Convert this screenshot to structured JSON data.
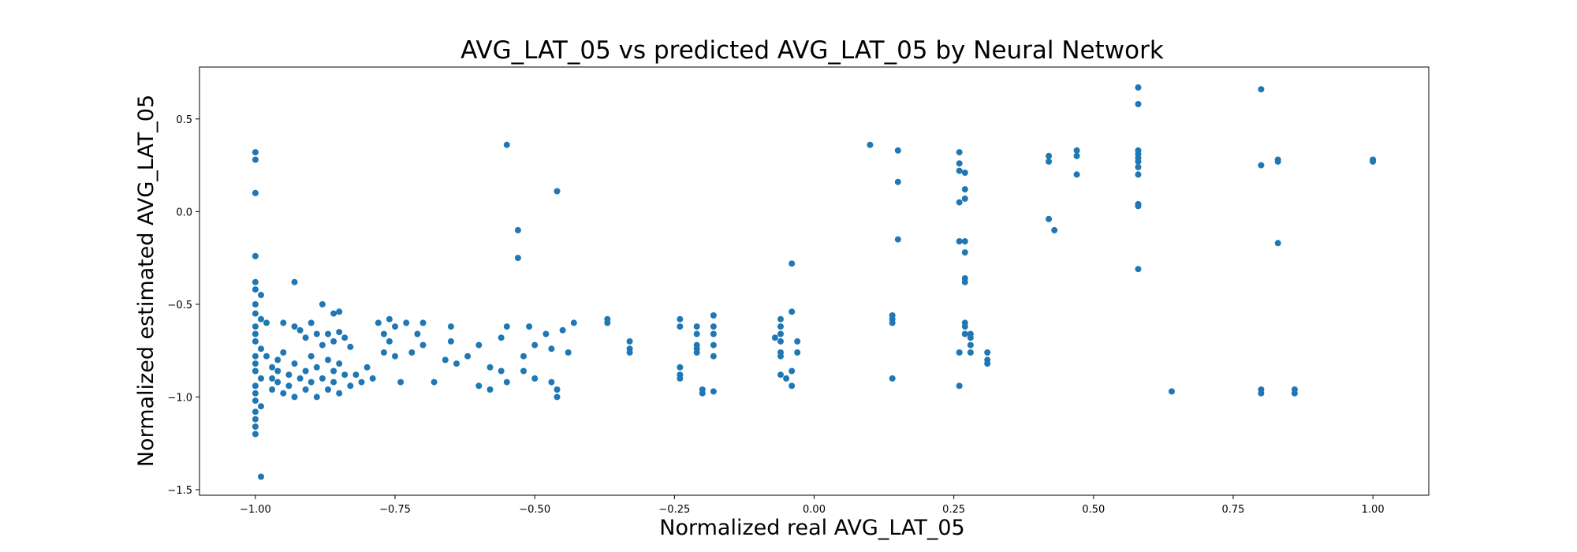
{
  "chart_data": {
    "type": "scatter",
    "title": "AVG_LAT_05 vs predicted AVG_LAT_05 by Neural Network",
    "xlabel": "Normalized real AVG_LAT_05",
    "ylabel": "Normalized estimated AVG_LAT_05",
    "xlim": [
      -1.1,
      1.1
    ],
    "ylim": [
      -1.53,
      0.78
    ],
    "xticks": [
      -1.0,
      -0.75,
      -0.5,
      -0.25,
      0.0,
      0.25,
      0.5,
      0.75,
      1.0
    ],
    "xtick_labels": [
      "−1.00",
      "−0.75",
      "−0.50",
      "−0.25",
      "0.00",
      "0.25",
      "0.50",
      "0.75",
      "1.00"
    ],
    "yticks": [
      -1.5,
      -1.0,
      -0.5,
      0.0,
      0.5
    ],
    "ytick_labels": [
      "−1.5",
      "−1.0",
      "−0.5",
      "0.0",
      "0.5"
    ],
    "grid": false,
    "legend": "none",
    "marker_color": "#1f77b4",
    "series": [
      {
        "points": [
          [
            -1.0,
            0.32
          ],
          [
            -1.0,
            0.28
          ],
          [
            -1.0,
            0.1
          ],
          [
            -1.0,
            -0.24
          ],
          [
            -1.0,
            -0.38
          ],
          [
            -1.0,
            -0.42
          ],
          [
            -0.99,
            -0.45
          ],
          [
            -1.0,
            -0.5
          ],
          [
            -1.0,
            -0.55
          ],
          [
            -0.99,
            -0.58
          ],
          [
            -1.0,
            -0.62
          ],
          [
            -1.0,
            -0.66
          ],
          [
            -1.0,
            -0.7
          ],
          [
            -0.99,
            -0.74
          ],
          [
            -1.0,
            -0.78
          ],
          [
            -1.0,
            -0.82
          ],
          [
            -1.0,
            -0.86
          ],
          [
            -0.99,
            -0.9
          ],
          [
            -1.0,
            -0.94
          ],
          [
            -1.0,
            -0.98
          ],
          [
            -1.0,
            -1.02
          ],
          [
            -0.99,
            -1.05
          ],
          [
            -1.0,
            -1.08
          ],
          [
            -1.0,
            -1.12
          ],
          [
            -1.0,
            -1.16
          ],
          [
            -1.0,
            -1.2
          ],
          [
            -0.99,
            -1.43
          ],
          [
            -0.98,
            -0.6
          ],
          [
            -0.98,
            -0.78
          ],
          [
            -0.97,
            -0.84
          ],
          [
            -0.97,
            -0.9
          ],
          [
            -0.97,
            -0.96
          ],
          [
            -0.96,
            -0.8
          ],
          [
            -0.96,
            -0.86
          ],
          [
            -0.96,
            -0.92
          ],
          [
            -0.95,
            -0.98
          ],
          [
            -0.95,
            -0.76
          ],
          [
            -0.94,
            -0.88
          ],
          [
            -0.94,
            -0.94
          ],
          [
            -0.93,
            -0.82
          ],
          [
            -0.93,
            -1.0
          ],
          [
            -0.92,
            -0.64
          ],
          [
            -0.92,
            -0.9
          ],
          [
            -0.91,
            -0.86
          ],
          [
            -0.91,
            -0.96
          ],
          [
            -0.9,
            -0.78
          ],
          [
            -0.9,
            -0.92
          ],
          [
            -0.89,
            -0.84
          ],
          [
            -0.89,
            -1.0
          ],
          [
            -0.88,
            -0.9
          ],
          [
            -0.87,
            -0.8
          ],
          [
            -0.87,
            -0.96
          ],
          [
            -0.86,
            -0.86
          ],
          [
            -0.86,
            -0.92
          ],
          [
            -0.85,
            -0.82
          ],
          [
            -0.85,
            -0.98
          ],
          [
            -0.84,
            -0.88
          ],
          [
            -0.83,
            -0.94
          ],
          [
            -0.95,
            -0.6
          ],
          [
            -0.93,
            -0.62
          ],
          [
            -0.91,
            -0.68
          ],
          [
            -0.9,
            -0.6
          ],
          [
            -0.89,
            -0.66
          ],
          [
            -0.88,
            -0.72
          ],
          [
            -0.87,
            -0.66
          ],
          [
            -0.86,
            -0.7
          ],
          [
            -0.85,
            -0.65
          ],
          [
            -0.84,
            -0.68
          ],
          [
            -0.83,
            -0.73
          ],
          [
            -0.82,
            -0.88
          ],
          [
            -0.81,
            -0.92
          ],
          [
            -0.8,
            -0.84
          ],
          [
            -0.79,
            -0.9
          ],
          [
            -0.88,
            -0.5
          ],
          [
            -0.93,
            -0.38
          ],
          [
            -0.86,
            -0.55
          ],
          [
            -0.85,
            -0.54
          ],
          [
            -0.78,
            -0.6
          ],
          [
            -0.77,
            -0.66
          ],
          [
            -0.77,
            -0.76
          ],
          [
            -0.76,
            -0.7
          ],
          [
            -0.76,
            -0.58
          ],
          [
            -0.75,
            -0.62
          ],
          [
            -0.75,
            -0.78
          ],
          [
            -0.74,
            -0.92
          ],
          [
            -0.73,
            -0.6
          ],
          [
            -0.72,
            -0.76
          ],
          [
            -0.71,
            -0.66
          ],
          [
            -0.7,
            -0.6
          ],
          [
            -0.7,
            -0.72
          ],
          [
            -0.68,
            -0.92
          ],
          [
            -0.66,
            -0.8
          ],
          [
            -0.65,
            -0.62
          ],
          [
            -0.65,
            -0.7
          ],
          [
            -0.64,
            -0.82
          ],
          [
            -0.62,
            -0.78
          ],
          [
            -0.6,
            -0.72
          ],
          [
            -0.6,
            -0.94
          ],
          [
            -0.58,
            -0.84
          ],
          [
            -0.58,
            -0.96
          ],
          [
            -0.56,
            -0.68
          ],
          [
            -0.56,
            -0.86
          ],
          [
            -0.55,
            -0.62
          ],
          [
            -0.55,
            -0.92
          ],
          [
            -0.55,
            0.36
          ],
          [
            -0.53,
            -0.1
          ],
          [
            -0.53,
            -0.25
          ],
          [
            -0.52,
            -0.78
          ],
          [
            -0.52,
            -0.86
          ],
          [
            -0.51,
            -0.62
          ],
          [
            -0.5,
            -0.72
          ],
          [
            -0.5,
            -0.9
          ],
          [
            -0.48,
            -0.66
          ],
          [
            -0.47,
            -0.74
          ],
          [
            -0.47,
            -0.92
          ],
          [
            -0.46,
            -0.96
          ],
          [
            -0.46,
            -1.0
          ],
          [
            -0.46,
            0.11
          ],
          [
            -0.45,
            -0.64
          ],
          [
            -0.44,
            -0.76
          ],
          [
            -0.43,
            -0.6
          ],
          [
            -0.37,
            -0.58
          ],
          [
            -0.37,
            -0.6
          ],
          [
            -0.33,
            -0.7
          ],
          [
            -0.33,
            -0.74
          ],
          [
            -0.33,
            -0.76
          ],
          [
            -0.24,
            -0.58
          ],
          [
            -0.24,
            -0.62
          ],
          [
            -0.24,
            -0.84
          ],
          [
            -0.24,
            -0.88
          ],
          [
            -0.24,
            -0.9
          ],
          [
            -0.21,
            -0.62
          ],
          [
            -0.21,
            -0.66
          ],
          [
            -0.21,
            -0.72
          ],
          [
            -0.21,
            -0.74
          ],
          [
            -0.21,
            -0.76
          ],
          [
            -0.2,
            -0.96
          ],
          [
            -0.2,
            -0.98
          ],
          [
            -0.18,
            -0.56
          ],
          [
            -0.18,
            -0.62
          ],
          [
            -0.18,
            -0.66
          ],
          [
            -0.18,
            -0.72
          ],
          [
            -0.18,
            -0.78
          ],
          [
            -0.18,
            -0.97
          ],
          [
            -0.07,
            -0.68
          ],
          [
            -0.06,
            -0.58
          ],
          [
            -0.06,
            -0.62
          ],
          [
            -0.06,
            -0.66
          ],
          [
            -0.06,
            -0.7
          ],
          [
            -0.06,
            -0.76
          ],
          [
            -0.06,
            -0.78
          ],
          [
            -0.06,
            -0.88
          ],
          [
            -0.05,
            -0.9
          ],
          [
            -0.04,
            -0.28
          ],
          [
            -0.04,
            -0.54
          ],
          [
            -0.04,
            -0.86
          ],
          [
            -0.04,
            -0.94
          ],
          [
            -0.03,
            -0.7
          ],
          [
            -0.03,
            -0.76
          ],
          [
            0.1,
            0.36
          ],
          [
            0.14,
            -0.56
          ],
          [
            0.14,
            -0.58
          ],
          [
            0.14,
            -0.6
          ],
          [
            0.14,
            -0.9
          ],
          [
            0.15,
            0.33
          ],
          [
            0.15,
            0.16
          ],
          [
            0.15,
            -0.15
          ],
          [
            0.26,
            0.32
          ],
          [
            0.26,
            0.26
          ],
          [
            0.26,
            0.22
          ],
          [
            0.27,
            0.21
          ],
          [
            0.26,
            0.05
          ],
          [
            0.27,
            0.07
          ],
          [
            0.27,
            0.12
          ],
          [
            0.26,
            -0.16
          ],
          [
            0.27,
            -0.16
          ],
          [
            0.27,
            -0.22
          ],
          [
            0.27,
            -0.36
          ],
          [
            0.27,
            -0.38
          ],
          [
            0.26,
            -0.76
          ],
          [
            0.26,
            -0.94
          ],
          [
            0.27,
            -0.6
          ],
          [
            0.27,
            -0.62
          ],
          [
            0.27,
            -0.66
          ],
          [
            0.28,
            -0.66
          ],
          [
            0.28,
            -0.68
          ],
          [
            0.28,
            -0.72
          ],
          [
            0.28,
            -0.76
          ],
          [
            0.31,
            -0.76
          ],
          [
            0.31,
            -0.8
          ],
          [
            0.31,
            -0.82
          ],
          [
            0.42,
            0.3
          ],
          [
            0.42,
            0.27
          ],
          [
            0.42,
            -0.04
          ],
          [
            0.43,
            -0.1
          ],
          [
            0.47,
            0.33
          ],
          [
            0.47,
            0.3
          ],
          [
            0.47,
            0.2
          ],
          [
            0.58,
            0.67
          ],
          [
            0.58,
            0.58
          ],
          [
            0.58,
            0.33
          ],
          [
            0.58,
            0.31
          ],
          [
            0.58,
            0.29
          ],
          [
            0.58,
            0.27
          ],
          [
            0.58,
            0.24
          ],
          [
            0.58,
            0.2
          ],
          [
            0.58,
            0.04
          ],
          [
            0.58,
            0.03
          ],
          [
            0.58,
            -0.31
          ],
          [
            0.64,
            -0.97
          ],
          [
            0.8,
            0.66
          ],
          [
            0.8,
            0.25
          ],
          [
            0.8,
            -0.96
          ],
          [
            0.8,
            -0.98
          ],
          [
            0.83,
            0.27
          ],
          [
            0.83,
            0.28
          ],
          [
            0.83,
            -0.17
          ],
          [
            0.86,
            -0.96
          ],
          [
            0.86,
            -0.98
          ],
          [
            1.0,
            0.28
          ],
          [
            1.0,
            0.27
          ]
        ]
      }
    ]
  }
}
